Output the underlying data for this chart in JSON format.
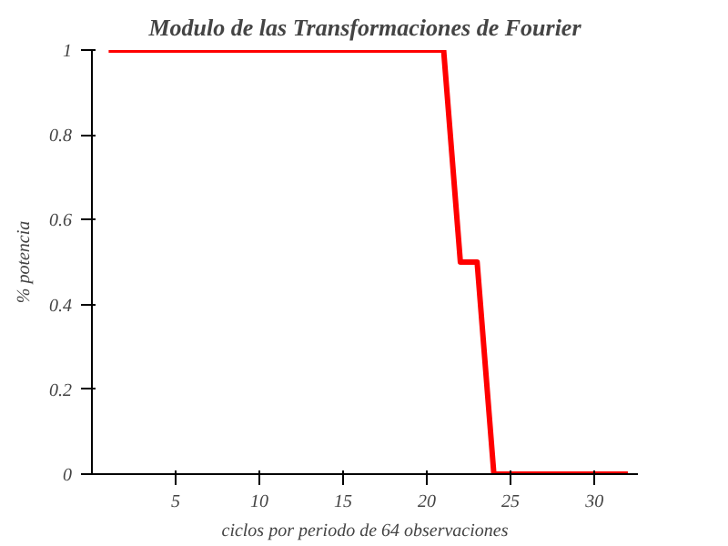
{
  "chart_data": {
    "type": "line",
    "title": "Modulo de las Transformaciones de Fourier",
    "xlabel": "ciclos por periodo de 64 observaciones",
    "ylabel": "% potencia",
    "x": [
      1,
      2,
      3,
      4,
      5,
      6,
      7,
      8,
      9,
      10,
      11,
      12,
      13,
      14,
      15,
      16,
      17,
      18,
      19,
      20,
      21,
      22,
      23,
      24,
      25,
      26,
      27,
      28,
      29,
      30,
      31,
      32
    ],
    "series": [
      {
        "color": "#ff0000",
        "values": [
          1,
          1,
          1,
          1,
          1,
          1,
          1,
          1,
          1,
          1,
          1,
          1,
          1,
          1,
          1,
          1,
          1,
          1,
          1,
          1,
          1,
          0.5,
          0.5,
          0,
          0,
          0,
          0,
          0,
          0,
          0,
          0,
          0
        ]
      }
    ],
    "xlim": [
      0,
      32.6
    ],
    "ylim": [
      0,
      1
    ],
    "xticks": [
      5,
      10,
      15,
      20,
      25,
      30
    ],
    "yticks": [
      0,
      0.2,
      0.4,
      0.6,
      0.8,
      1
    ],
    "grid": false,
    "marker": "none",
    "line_style": "solid"
  }
}
